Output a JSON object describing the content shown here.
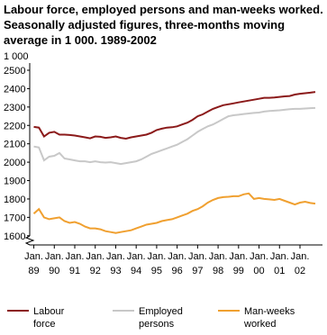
{
  "chart_data": {
    "type": "line",
    "title": "Labour force, employed persons and man-weeks worked. Seasonally adjusted figures, three-months moving average in 1 000. 1989-2002",
    "y_label": "1 000",
    "x": [
      1989,
      1989.25,
      1989.5,
      1989.75,
      1990,
      1990.25,
      1990.5,
      1990.75,
      1991,
      1991.25,
      1991.5,
      1991.75,
      1992,
      1992.25,
      1992.5,
      1992.75,
      1993,
      1993.25,
      1993.5,
      1993.75,
      1994,
      1994.25,
      1994.5,
      1994.75,
      1995,
      1995.25,
      1995.5,
      1995.75,
      1996,
      1996.25,
      1996.5,
      1996.75,
      1997,
      1997.25,
      1997.5,
      1997.75,
      1998,
      1998.25,
      1998.5,
      1998.75,
      1999,
      1999.25,
      1999.5,
      1999.75,
      2000,
      2000.25,
      2000.5,
      2000.75,
      2001,
      2001.25,
      2001.5,
      2001.75,
      2002,
      2002.25,
      2002.5,
      2002.75
    ],
    "series": [
      {
        "name": "Labour force",
        "color": "#8b1a1a",
        "values": [
          2192,
          2188,
          2140,
          2160,
          2165,
          2150,
          2150,
          2148,
          2145,
          2140,
          2135,
          2130,
          2140,
          2138,
          2132,
          2135,
          2140,
          2132,
          2128,
          2135,
          2140,
          2145,
          2150,
          2160,
          2175,
          2182,
          2188,
          2190,
          2195,
          2205,
          2215,
          2230,
          2250,
          2260,
          2275,
          2290,
          2300,
          2310,
          2315,
          2320,
          2325,
          2330,
          2335,
          2340,
          2345,
          2350,
          2350,
          2352,
          2355,
          2358,
          2360,
          2368,
          2372,
          2375,
          2378,
          2382
        ]
      },
      {
        "name": "Employed persons",
        "color": "#c8c8c8",
        "values": [
          2085,
          2080,
          2010,
          2030,
          2035,
          2050,
          2020,
          2015,
          2010,
          2005,
          2005,
          2000,
          2005,
          2000,
          1998,
          2000,
          1995,
          1990,
          1995,
          2000,
          2005,
          2015,
          2030,
          2045,
          2055,
          2065,
          2075,
          2085,
          2095,
          2110,
          2125,
          2145,
          2165,
          2180,
          2195,
          2205,
          2220,
          2235,
          2250,
          2255,
          2258,
          2262,
          2265,
          2268,
          2270,
          2275,
          2278,
          2280,
          2282,
          2285,
          2288,
          2290,
          2290,
          2292,
          2294,
          2295
        ]
      },
      {
        "name": "Man-weeks worked",
        "color": "#f0a030",
        "values": [
          1720,
          1745,
          1700,
          1690,
          1695,
          1700,
          1680,
          1670,
          1675,
          1665,
          1650,
          1640,
          1640,
          1635,
          1625,
          1620,
          1615,
          1620,
          1625,
          1630,
          1640,
          1650,
          1660,
          1665,
          1670,
          1680,
          1685,
          1690,
          1700,
          1710,
          1720,
          1735,
          1745,
          1760,
          1780,
          1795,
          1805,
          1810,
          1812,
          1815,
          1815,
          1825,
          1830,
          1800,
          1805,
          1800,
          1798,
          1795,
          1800,
          1790,
          1780,
          1770,
          1780,
          1785,
          1778,
          1775
        ]
      }
    ],
    "xlim": [
      1988.8,
      2003.1
    ],
    "xticks": [
      {
        "value": 1989,
        "label": "Jan. 89"
      },
      {
        "value": 1990,
        "label": "Jan. 90"
      },
      {
        "value": 1991,
        "label": "Jan. 91"
      },
      {
        "value": 1992,
        "label": "Jan. 92"
      },
      {
        "value": 1993,
        "label": "Jan. 93"
      },
      {
        "value": 1994,
        "label": "Jan. 94"
      },
      {
        "value": 1995,
        "label": "Jan. 95"
      },
      {
        "value": 1996,
        "label": "Jan. 96"
      },
      {
        "value": 1997,
        "label": "Jan. 97"
      },
      {
        "value": 1998,
        "label": "Jan. 98"
      },
      {
        "value": 1999,
        "label": "Jan. 99"
      },
      {
        "value": 2000,
        "label": "Jan. 00"
      },
      {
        "value": 2001,
        "label": "Jan. 01"
      },
      {
        "value": 2002,
        "label": "Jan. 02"
      }
    ],
    "ylim": [
      1550,
      2500
    ],
    "yticks": [
      1600,
      1700,
      1800,
      1900,
      2000,
      2100,
      2200,
      2300,
      2400,
      2500
    ],
    "grid": false
  }
}
